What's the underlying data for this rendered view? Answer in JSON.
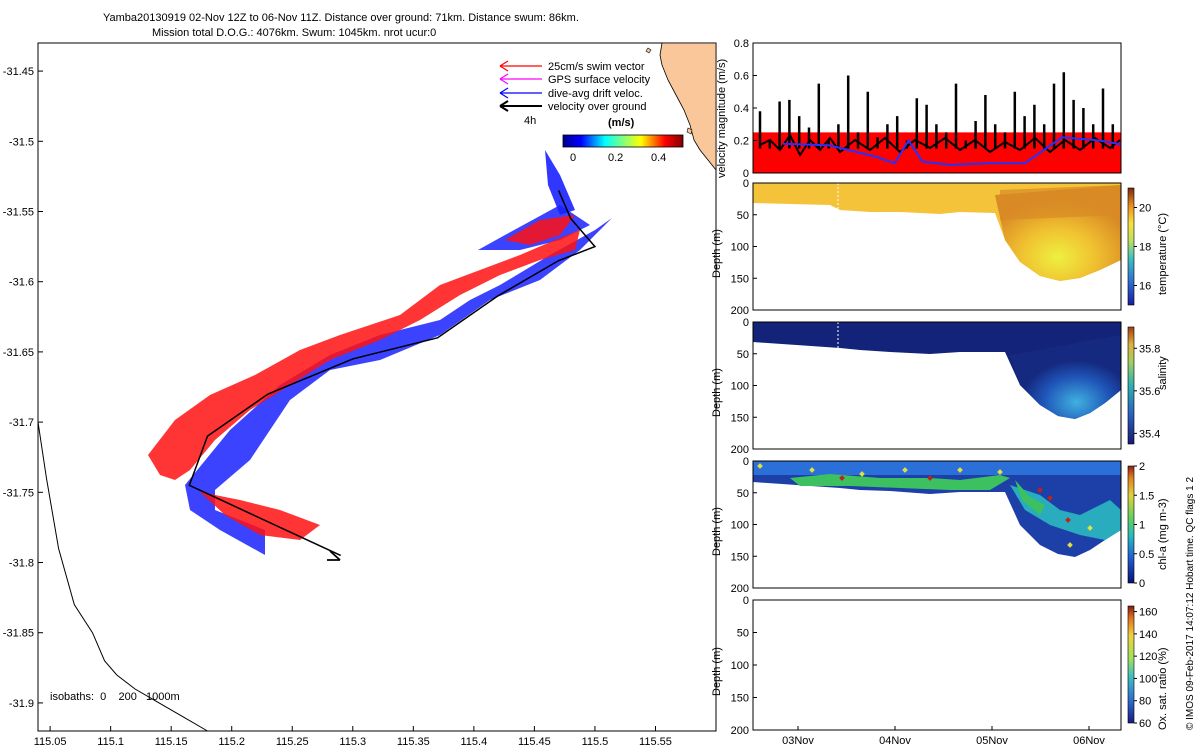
{
  "title": {
    "line1": "Yamba20130919 02-Nov 12Z to 06-Nov 11Z. Distance over ground: 71km. Distance swum: 86km.",
    "line2": "Mission total D.O.G.: 4076km. Swum: 1045km. nrot ucur:0"
  },
  "map": {
    "lon_ticks": [
      "115.05",
      "115.1",
      "115.15",
      "115.2",
      "115.25",
      "115.3",
      "115.35",
      "115.4",
      "115.45",
      "115.5",
      "115.55"
    ],
    "lat_ticks": [
      "-31.45",
      "-31.5",
      "-31.55",
      "-31.6",
      "-31.65",
      "-31.7",
      "-31.75",
      "-31.8",
      "-31.85",
      "-31.9"
    ],
    "legend": {
      "swim": "25cm/s swim vector",
      "gps": "GPS surface velocity",
      "dive": "dive-avg drift veloc.",
      "vog": "velocity over ground",
      "interval": "4h"
    },
    "colorbar": {
      "label": "(m/s)",
      "ticks": [
        "0",
        "0.2",
        "0.4"
      ]
    },
    "isobaths": "isobaths:  0    200   1000m",
    "colors": {
      "swim": "#ff0000",
      "gps": "#ff00ff",
      "drift": "#0000ff",
      "ground": "#000000",
      "land": "#f9c79a"
    }
  },
  "side_label": "© IMOS 09-Feb-2017 14:07:12 Hobart time. QC flags 1  2",
  "panels": {
    "velocity": {
      "ylabel": "velocity magnitude (m/s)",
      "yticks": [
        "0",
        "0.2",
        "0.4",
        "0.6",
        "0.8"
      ]
    },
    "temperature": {
      "ylabel": "Depth (m)",
      "yticks": [
        "0",
        "50",
        "100",
        "150",
        "200"
      ],
      "cbar_label": "temperature (°C)",
      "cbar_ticks": [
        "16",
        "18",
        "20"
      ]
    },
    "salinity": {
      "ylabel": "Depth (m)",
      "yticks": [
        "0",
        "50",
        "100",
        "150",
        "200"
      ],
      "cbar_label": "salinity",
      "cbar_ticks": [
        "35.4",
        "35.6",
        "35.8"
      ]
    },
    "chla": {
      "ylabel": "Depth (m)",
      "yticks": [
        "0",
        "50",
        "100",
        "150",
        "200"
      ],
      "cbar_label": "chl-a (mg m-3)",
      "cbar_ticks": [
        "0",
        "0.5",
        "1",
        "1.5",
        "2"
      ]
    },
    "oxygen": {
      "ylabel": "Depth (m)",
      "yticks": [
        "0",
        "50",
        "100",
        "150",
        "200"
      ],
      "cbar_label": "Ox. sat. ratio (%)",
      "cbar_ticks": [
        "60",
        "80",
        "100",
        "120",
        "140",
        "160"
      ]
    },
    "xticks": [
      "03Nov",
      "04Nov",
      "05Nov",
      "06Nov"
    ]
  },
  "chart_data": [
    {
      "type": "line",
      "name": "glider track map",
      "xlabel": "",
      "ylabel": "",
      "xlim": [
        115.04,
        115.6
      ],
      "ylim": [
        -31.92,
        -31.43
      ],
      "series": [
        {
          "name": "velocity over ground",
          "x": [
            115.29,
            115.24,
            115.19,
            115.165,
            115.18,
            115.23,
            115.3,
            115.37,
            115.42,
            115.47,
            115.5,
            115.48,
            115.47
          ],
          "y": [
            -31.795,
            -31.775,
            -31.755,
            -31.745,
            -31.71,
            -31.68,
            -31.655,
            -31.64,
            -31.61,
            -31.585,
            -31.575,
            -31.555,
            -31.535
          ]
        },
        {
          "name": "coastline",
          "x": [
            115.04,
            115.047,
            115.057,
            115.07,
            115.085,
            115.095,
            115.105,
            115.12,
            115.14,
            115.16,
            115.18
          ],
          "y": [
            -31.7,
            -31.74,
            -31.79,
            -31.83,
            -31.85,
            -31.87,
            -31.88,
            -31.89,
            -31.9,
            -31.91,
            -31.92
          ]
        }
      ]
    },
    {
      "type": "line",
      "name": "velocity magnitude",
      "xlabel": "",
      "ylabel": "velocity magnitude (m/s)",
      "ylim": [
        0,
        0.8
      ],
      "x_labels": [
        "03Nov",
        "04Nov",
        "05Nov",
        "06Nov"
      ],
      "series": [
        {
          "name": "dive-avg drift",
          "x": [
            0,
            0.5,
            1,
            1.2,
            1.35,
            1.5,
            1.8,
            2.2,
            2.6,
            3.0,
            3.4,
            3.6,
            3.9
          ],
          "y": [
            0.18,
            0.17,
            0.1,
            0.06,
            0.2,
            0.07,
            0.05,
            0.06,
            0.06,
            0.22,
            0.2,
            0.18,
            0.12
          ]
        },
        {
          "name": "swim",
          "x": [
            0,
            3.9
          ],
          "y": [
            0.25,
            0.25
          ]
        }
      ]
    },
    {
      "type": "heatmap",
      "name": "temperature",
      "ylabel": "Depth (m)",
      "ylim": [
        0,
        200
      ],
      "cbar_label": "temperature (°C)",
      "cbar_range": [
        15,
        21
      ]
    },
    {
      "type": "heatmap",
      "name": "salinity",
      "ylabel": "Depth (m)",
      "ylim": [
        0,
        200
      ],
      "cbar_label": "salinity",
      "cbar_range": [
        35.35,
        35.9
      ]
    },
    {
      "type": "heatmap",
      "name": "chl-a",
      "ylabel": "Depth (m)",
      "ylim": [
        0,
        200
      ],
      "cbar_label": "chl-a (mg m-3)",
      "cbar_range": [
        0,
        2
      ]
    },
    {
      "type": "heatmap",
      "name": "oxygen",
      "ylabel": "Depth (m)",
      "ylim": [
        0,
        200
      ],
      "cbar_label": "Ox. sat. ratio (%)",
      "cbar_range": [
        60,
        165
      ]
    }
  ]
}
